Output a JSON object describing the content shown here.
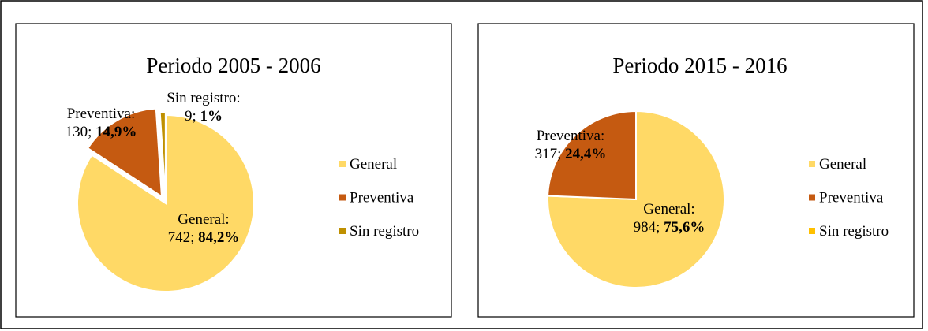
{
  "chart_data": [
    {
      "type": "pie",
      "title": "Periodo 2005 - 2006",
      "categories": [
        "General",
        "Preventiva",
        "Sin registro"
      ],
      "values": [
        742,
        130,
        9
      ],
      "label_names": [
        "General:",
        "Preventiva:",
        "Sin registro:"
      ],
      "value_labels": [
        "742;",
        "130;",
        "9;"
      ],
      "percents": [
        84.2,
        14.9,
        1
      ],
      "percent_labels": [
        "84,2%",
        "14,9%",
        "1%"
      ],
      "colors": [
        "#ffd966",
        "#c55a11",
        "#bf9000"
      ],
      "legend": "right"
    },
    {
      "type": "pie",
      "title": "Periodo 2015 - 2016",
      "categories": [
        "General",
        "Preventiva",
        "Sin registro"
      ],
      "values": [
        984,
        317,
        0
      ],
      "label_names": [
        "General:",
        "Preventiva:",
        null
      ],
      "value_labels": [
        "984;",
        "317;",
        null
      ],
      "percents": [
        75.6,
        24.4,
        null
      ],
      "percent_labels": [
        "75,6%",
        "24,4%",
        null
      ],
      "colors": [
        "#ffd966",
        "#c55a11",
        "#ffc000"
      ],
      "legend": "right"
    }
  ]
}
